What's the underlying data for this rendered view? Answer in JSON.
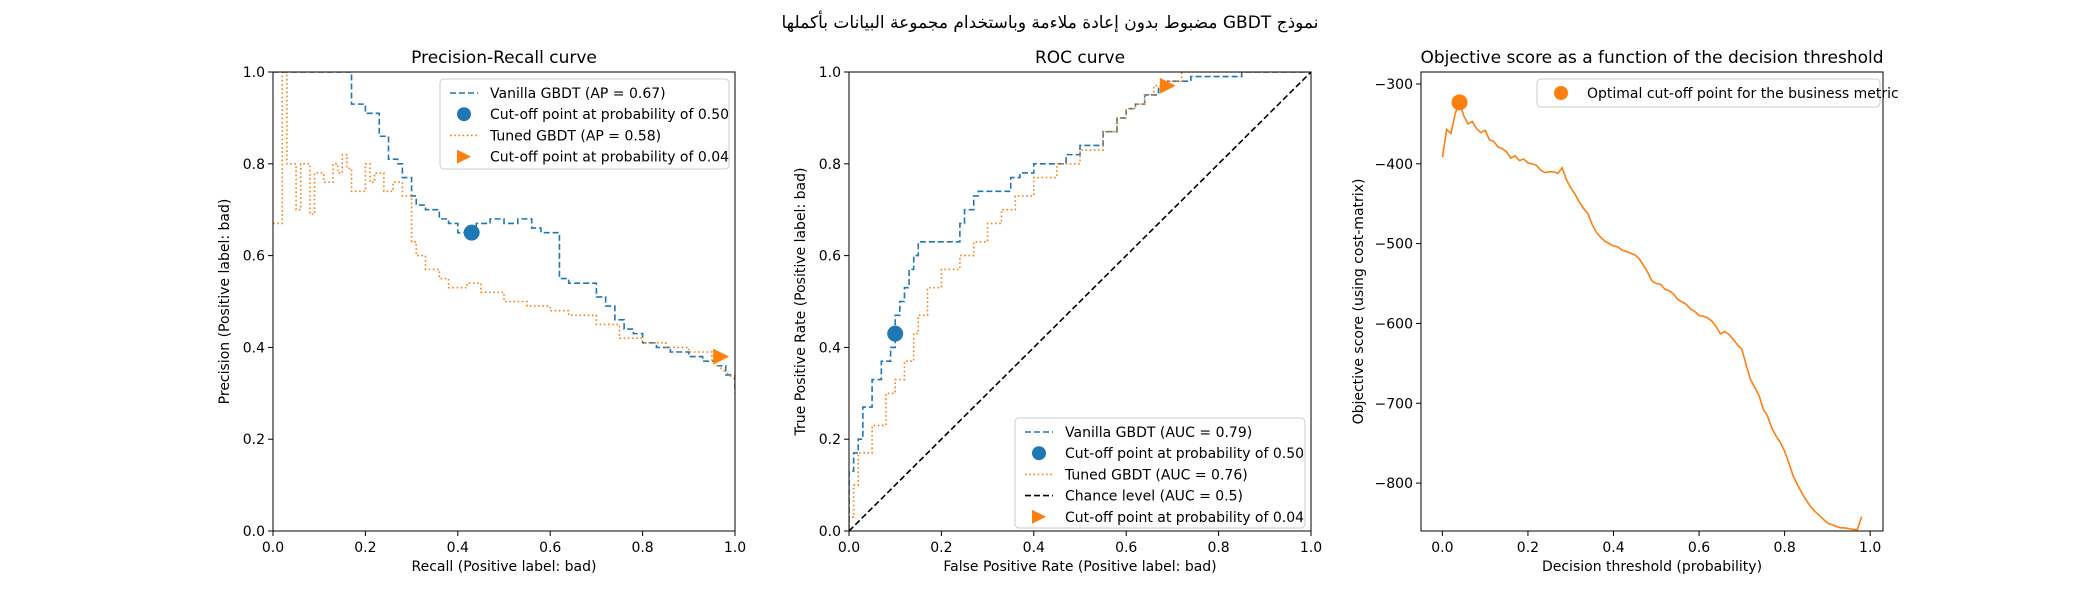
{
  "figure": {
    "suptitle": "نموذج GBDT مضبوط بدون إعادة ملاءمة وباستخدام مجموعة البيانات بأكملها"
  },
  "colors": {
    "blue": "#1f77b4",
    "orange": "#ff7f0e",
    "black": "#000000"
  },
  "chart_data": [
    {
      "type": "line",
      "title": "Precision-Recall curve",
      "xlabel": "Recall (Positive label: bad)",
      "ylabel": "Precision (Positive label: bad)",
      "xlim": [
        0,
        1
      ],
      "ylim": [
        0,
        1
      ],
      "xticks": [
        "0.0",
        "0.2",
        "0.4",
        "0.6",
        "0.8",
        "1.0"
      ],
      "yticks": [
        "0.0",
        "0.2",
        "0.4",
        "0.6",
        "0.8",
        "1.0"
      ],
      "legend_position": "upper right",
      "series": [
        {
          "name": "Vanilla GBDT (AP = 0.67)",
          "style": "dashed",
          "color": "#1f77b4",
          "step": true,
          "x": [
            0.0,
            0.17,
            0.17,
            0.2,
            0.2,
            0.23,
            0.23,
            0.25,
            0.25,
            0.27,
            0.27,
            0.28,
            0.28,
            0.3,
            0.3,
            0.31,
            0.31,
            0.33,
            0.33,
            0.36,
            0.36,
            0.38,
            0.38,
            0.4,
            0.4,
            0.42,
            0.42,
            0.44,
            0.44,
            0.47,
            0.47,
            0.5,
            0.5,
            0.53,
            0.53,
            0.56,
            0.56,
            0.58,
            0.58,
            0.62,
            0.62,
            0.64,
            0.64,
            0.7,
            0.7,
            0.72,
            0.72,
            0.74,
            0.74,
            0.76,
            0.76,
            0.78,
            0.78,
            0.8,
            0.8,
            0.83,
            0.83,
            0.86,
            0.86,
            0.9,
            0.9,
            0.93,
            0.93,
            0.96,
            0.96,
            0.98,
            0.98,
            1.0,
            1.0
          ],
          "y": [
            1.0,
            1.0,
            0.93,
            0.93,
            0.91,
            0.91,
            0.86,
            0.86,
            0.81,
            0.81,
            0.8,
            0.8,
            0.77,
            0.77,
            0.73,
            0.73,
            0.71,
            0.71,
            0.7,
            0.7,
            0.68,
            0.68,
            0.67,
            0.67,
            0.65,
            0.65,
            0.66,
            0.66,
            0.67,
            0.67,
            0.68,
            0.68,
            0.67,
            0.67,
            0.68,
            0.68,
            0.66,
            0.66,
            0.65,
            0.65,
            0.55,
            0.55,
            0.54,
            0.54,
            0.51,
            0.51,
            0.49,
            0.49,
            0.46,
            0.46,
            0.44,
            0.44,
            0.43,
            0.43,
            0.41,
            0.41,
            0.4,
            0.4,
            0.39,
            0.39,
            0.38,
            0.38,
            0.37,
            0.37,
            0.36,
            0.36,
            0.34,
            0.34,
            0.3
          ]
        },
        {
          "name": "Cut-off point at probability of 0.50",
          "style": "marker-circle",
          "color": "#1f77b4",
          "x": [
            0.43
          ],
          "y": [
            0.65
          ]
        },
        {
          "name": "Tuned GBDT (AP = 0.58)",
          "style": "dotted",
          "color": "#ff7f0e",
          "step": true,
          "x": [
            0.0,
            0.02,
            0.02,
            0.03,
            0.03,
            0.05,
            0.05,
            0.06,
            0.06,
            0.08,
            0.08,
            0.09,
            0.09,
            0.11,
            0.11,
            0.13,
            0.13,
            0.14,
            0.14,
            0.15,
            0.15,
            0.16,
            0.16,
            0.17,
            0.17,
            0.2,
            0.2,
            0.21,
            0.21,
            0.22,
            0.22,
            0.24,
            0.24,
            0.26,
            0.26,
            0.28,
            0.28,
            0.3,
            0.3,
            0.31,
            0.31,
            0.33,
            0.33,
            0.36,
            0.36,
            0.38,
            0.38,
            0.42,
            0.42,
            0.45,
            0.45,
            0.5,
            0.5,
            0.55,
            0.55,
            0.6,
            0.6,
            0.64,
            0.64,
            0.7,
            0.7,
            0.75,
            0.75,
            0.8,
            0.8,
            0.85,
            0.85,
            0.9,
            0.9,
            0.95,
            0.95,
            1.0
          ],
          "y": [
            0.67,
            0.67,
            1.0,
            1.0,
            0.8,
            0.8,
            0.7,
            0.7,
            0.8,
            0.8,
            0.69,
            0.69,
            0.78,
            0.78,
            0.76,
            0.76,
            0.8,
            0.8,
            0.78,
            0.78,
            0.82,
            0.82,
            0.79,
            0.79,
            0.74,
            0.74,
            0.8,
            0.8,
            0.76,
            0.76,
            0.78,
            0.78,
            0.74,
            0.74,
            0.76,
            0.76,
            0.73,
            0.73,
            0.63,
            0.63,
            0.6,
            0.6,
            0.57,
            0.57,
            0.55,
            0.55,
            0.53,
            0.53,
            0.54,
            0.54,
            0.52,
            0.52,
            0.5,
            0.5,
            0.49,
            0.49,
            0.48,
            0.48,
            0.47,
            0.47,
            0.45,
            0.45,
            0.42,
            0.42,
            0.41,
            0.41,
            0.4,
            0.4,
            0.39,
            0.39,
            0.37,
            0.33
          ]
        },
        {
          "name": "Cut-off point at probability of 0.04",
          "style": "marker-triangle-right",
          "color": "#ff7f0e",
          "x": [
            0.97
          ],
          "y": [
            0.38
          ]
        }
      ]
    },
    {
      "type": "line",
      "title": "ROC curve",
      "xlabel": "False Positive Rate (Positive label: bad)",
      "ylabel": "True Positive Rate (Positive label: bad)",
      "xlim": [
        0,
        1
      ],
      "ylim": [
        0,
        1
      ],
      "xticks": [
        "0.0",
        "0.2",
        "0.4",
        "0.6",
        "0.8",
        "1.0"
      ],
      "yticks": [
        "0.0",
        "0.2",
        "0.4",
        "0.6",
        "0.8",
        "1.0"
      ],
      "legend_position": "lower right",
      "series": [
        {
          "name": "Vanilla GBDT (AUC = 0.79)",
          "style": "dashed",
          "color": "#1f77b4",
          "step": true,
          "x": [
            0.0,
            0.0,
            0.01,
            0.01,
            0.02,
            0.02,
            0.03,
            0.03,
            0.05,
            0.05,
            0.07,
            0.07,
            0.09,
            0.09,
            0.1,
            0.1,
            0.11,
            0.11,
            0.12,
            0.12,
            0.13,
            0.13,
            0.14,
            0.14,
            0.15,
            0.15,
            0.24,
            0.24,
            0.25,
            0.25,
            0.27,
            0.27,
            0.28,
            0.28,
            0.35,
            0.35,
            0.37,
            0.37,
            0.4,
            0.4,
            0.47,
            0.47,
            0.5,
            0.5,
            0.55,
            0.55,
            0.58,
            0.58,
            0.6,
            0.6,
            0.62,
            0.62,
            0.64,
            0.64,
            0.67,
            0.67,
            0.69,
            0.69,
            0.74,
            0.74,
            0.85,
            0.85,
            1.0
          ],
          "y": [
            0.0,
            0.13,
            0.13,
            0.17,
            0.17,
            0.2,
            0.2,
            0.27,
            0.27,
            0.33,
            0.33,
            0.37,
            0.37,
            0.4,
            0.4,
            0.47,
            0.47,
            0.5,
            0.5,
            0.53,
            0.53,
            0.57,
            0.57,
            0.6,
            0.6,
            0.63,
            0.63,
            0.67,
            0.67,
            0.7,
            0.7,
            0.73,
            0.73,
            0.74,
            0.74,
            0.77,
            0.77,
            0.78,
            0.78,
            0.8,
            0.8,
            0.82,
            0.82,
            0.84,
            0.84,
            0.87,
            0.87,
            0.9,
            0.9,
            0.92,
            0.92,
            0.93,
            0.93,
            0.95,
            0.95,
            0.97,
            0.97,
            0.98,
            0.98,
            0.99,
            0.99,
            1.0,
            1.0
          ]
        },
        {
          "name": "Cut-off point at probability of 0.50",
          "style": "marker-circle",
          "color": "#1f77b4",
          "x": [
            0.1
          ],
          "y": [
            0.43
          ]
        },
        {
          "name": "Tuned GBDT (AUC = 0.76)",
          "style": "dotted",
          "color": "#ff7f0e",
          "step": true,
          "x": [
            0.0,
            0.0,
            0.01,
            0.01,
            0.02,
            0.02,
            0.05,
            0.05,
            0.08,
            0.08,
            0.1,
            0.1,
            0.12,
            0.12,
            0.14,
            0.14,
            0.15,
            0.15,
            0.17,
            0.17,
            0.2,
            0.2,
            0.24,
            0.24,
            0.27,
            0.27,
            0.3,
            0.3,
            0.33,
            0.33,
            0.36,
            0.36,
            0.4,
            0.4,
            0.45,
            0.45,
            0.5,
            0.5,
            0.55,
            0.55,
            0.58,
            0.58,
            0.6,
            0.6,
            0.62,
            0.62,
            0.64,
            0.64,
            0.66,
            0.66,
            0.68,
            0.68,
            0.72,
            0.72,
            0.78,
            0.78,
            1.0
          ],
          "y": [
            0.0,
            0.03,
            0.03,
            0.1,
            0.1,
            0.17,
            0.17,
            0.23,
            0.23,
            0.3,
            0.3,
            0.33,
            0.33,
            0.37,
            0.37,
            0.43,
            0.43,
            0.47,
            0.47,
            0.53,
            0.53,
            0.57,
            0.57,
            0.6,
            0.6,
            0.63,
            0.63,
            0.67,
            0.67,
            0.7,
            0.7,
            0.73,
            0.73,
            0.77,
            0.77,
            0.8,
            0.8,
            0.83,
            0.83,
            0.87,
            0.87,
            0.9,
            0.9,
            0.92,
            0.92,
            0.93,
            0.93,
            0.95,
            0.95,
            0.97,
            0.97,
            0.98,
            0.98,
            1.0,
            1.0,
            1.0,
            1.0
          ]
        },
        {
          "name": "Chance level (AUC = 0.5)",
          "style": "dashed",
          "color": "#000000",
          "x": [
            0,
            1
          ],
          "y": [
            0,
            1
          ]
        },
        {
          "name": "Cut-off point at probability of 0.04",
          "style": "marker-triangle-right",
          "color": "#ff7f0e",
          "x": [
            0.69
          ],
          "y": [
            0.97
          ]
        }
      ]
    },
    {
      "type": "line",
      "title": "Objective score as a function of the decision threshold",
      "xlabel": "Decision threshold (probability)",
      "ylabel": "Objective score (using cost-matrix)",
      "xlim": [
        -0.05,
        1.03
      ],
      "ylim": [
        -860,
        -285
      ],
      "xticks": [
        "0.0",
        "0.2",
        "0.4",
        "0.6",
        "0.8",
        "1.0"
      ],
      "yticks": [
        "−300",
        "−400",
        "−500",
        "−600",
        "−700",
        "−800"
      ],
      "xtick_values": [
        0,
        0.2,
        0.4,
        0.6,
        0.8,
        1.0
      ],
      "ytick_values": [
        -300,
        -400,
        -500,
        -600,
        -700,
        -800
      ],
      "legend_position": "upper right",
      "series": [
        {
          "style": "solid",
          "color": "#ff7f0e",
          "x": [
            0.0,
            0.01,
            0.02,
            0.03,
            0.04,
            0.05,
            0.06,
            0.07,
            0.08,
            0.09,
            0.1,
            0.11,
            0.12,
            0.13,
            0.14,
            0.15,
            0.16,
            0.17,
            0.18,
            0.19,
            0.2,
            0.21,
            0.22,
            0.23,
            0.24,
            0.25,
            0.26,
            0.27,
            0.28,
            0.29,
            0.3,
            0.31,
            0.32,
            0.33,
            0.34,
            0.35,
            0.36,
            0.37,
            0.38,
            0.39,
            0.4,
            0.41,
            0.42,
            0.43,
            0.44,
            0.45,
            0.46,
            0.47,
            0.48,
            0.49,
            0.5,
            0.51,
            0.52,
            0.53,
            0.54,
            0.55,
            0.56,
            0.57,
            0.58,
            0.59,
            0.6,
            0.61,
            0.62,
            0.63,
            0.64,
            0.65,
            0.66,
            0.67,
            0.68,
            0.69,
            0.7,
            0.71,
            0.72,
            0.73,
            0.74,
            0.75,
            0.76,
            0.77,
            0.78,
            0.79,
            0.8,
            0.81,
            0.82,
            0.83,
            0.84,
            0.85,
            0.86,
            0.87,
            0.88,
            0.89,
            0.9,
            0.91,
            0.92,
            0.93,
            0.94,
            0.95,
            0.96,
            0.97,
            0.98
          ],
          "y": [
            -392,
            -357,
            -362,
            -337,
            -323,
            -340,
            -350,
            -347,
            -356,
            -361,
            -358,
            -370,
            -372,
            -379,
            -381,
            -385,
            -393,
            -390,
            -396,
            -394,
            -399,
            -400,
            -402,
            -408,
            -411,
            -410,
            -410,
            -412,
            -405,
            -420,
            -430,
            -438,
            -448,
            -456,
            -462,
            -476,
            -486,
            -492,
            -497,
            -500,
            -503,
            -504,
            -508,
            -510,
            -512,
            -514,
            -519,
            -527,
            -536,
            -547,
            -550,
            -551,
            -557,
            -559,
            -563,
            -570,
            -573,
            -576,
            -582,
            -585,
            -590,
            -591,
            -593,
            -597,
            -604,
            -613,
            -610,
            -614,
            -620,
            -627,
            -632,
            -652,
            -670,
            -680,
            -690,
            -707,
            -716,
            -731,
            -741,
            -749,
            -760,
            -775,
            -791,
            -802,
            -812,
            -821,
            -829,
            -835,
            -840,
            -845,
            -850,
            -852,
            -854,
            -856,
            -856,
            -857,
            -858,
            -858,
            -842
          ]
        },
        {
          "name": "Optimal cut-off point for the business metric",
          "style": "marker-circle",
          "color": "#ff7f0e",
          "x": [
            0.04
          ],
          "y": [
            -323
          ]
        }
      ]
    }
  ]
}
